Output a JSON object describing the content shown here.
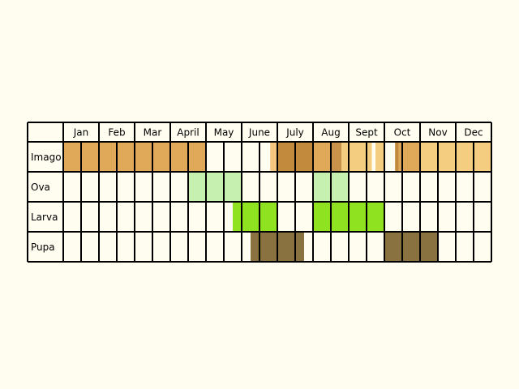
{
  "chart_data": {
    "type": "table",
    "months": [
      "Jan",
      "Feb",
      "Mar",
      "April",
      "May",
      "June",
      "July",
      "Aug",
      "Sept",
      "Oct",
      "Nov",
      "Dec"
    ],
    "stages": [
      {
        "label": "Imago",
        "segments": [
          {
            "start": 0,
            "end": 8,
            "color": "#e0a859"
          },
          {
            "start": 11.6,
            "end": 12,
            "color": "#f3c57f"
          },
          {
            "start": 12,
            "end": 14,
            "color": "#c18a3c"
          },
          {
            "start": 14,
            "end": 15,
            "color": "#e0a859"
          },
          {
            "start": 15,
            "end": 15.6,
            "color": "#c8924a"
          },
          {
            "start": 15.6,
            "end": 17.3,
            "color": "#f5cd80"
          },
          {
            "start": 17.3,
            "end": 17.5,
            "color": "#fffdf0"
          },
          {
            "start": 17.5,
            "end": 18,
            "color": "#f5cd80"
          },
          {
            "start": 18,
            "end": 18.6,
            "color": "#fffdf0"
          },
          {
            "start": 18.6,
            "end": 18.8,
            "color": "#c18a3c"
          },
          {
            "start": 18.8,
            "end": 20,
            "color": "#e0a859"
          },
          {
            "start": 20,
            "end": 24,
            "color": "#f5cd80"
          }
        ]
      },
      {
        "label": "Ova",
        "segments": [
          {
            "start": 7,
            "end": 10,
            "color": "#c6f0b0"
          },
          {
            "start": 14,
            "end": 16,
            "color": "#c6f0b0"
          }
        ]
      },
      {
        "label": "Larva",
        "segments": [
          {
            "start": 9.5,
            "end": 12,
            "color": "#8ee21f"
          },
          {
            "start": 14,
            "end": 18,
            "color": "#8ee21f"
          }
        ]
      },
      {
        "label": "Pupa",
        "segments": [
          {
            "start": 10.5,
            "end": 13.5,
            "color": "#8a7140"
          },
          {
            "start": 18,
            "end": 21,
            "color": "#8a7140"
          }
        ]
      }
    ]
  }
}
